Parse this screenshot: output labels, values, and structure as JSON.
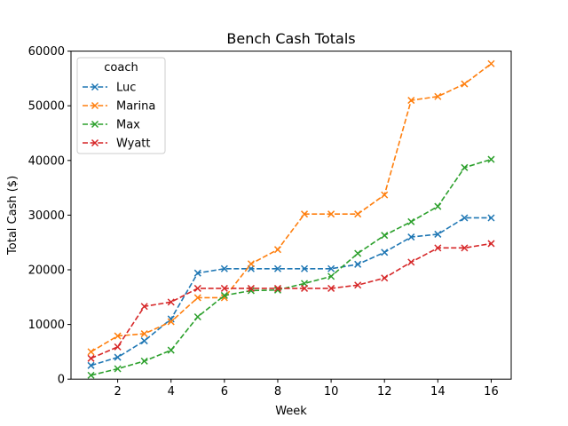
{
  "chart_data": {
    "type": "line",
    "title": "Bench Cash Totals",
    "xlabel": "Week",
    "ylabel": "Total Cash ($)",
    "xlim": [
      0.25,
      16.75
    ],
    "ylim": [
      0,
      60000
    ],
    "xticks": [
      2,
      4,
      6,
      8,
      10,
      12,
      14,
      16
    ],
    "yticks": [
      0,
      10000,
      20000,
      30000,
      40000,
      50000,
      60000
    ],
    "grid": false,
    "legend": {
      "title": "coach",
      "placement": "top-left"
    },
    "x": [
      1,
      2,
      3,
      4,
      5,
      6,
      7,
      8,
      9,
      10,
      11,
      12,
      13,
      14,
      15,
      16
    ],
    "series": [
      {
        "name": "Luc",
        "color": "#1f77b4",
        "values": [
          2500,
          4000,
          7000,
          11000,
          19400,
          20200,
          20200,
          20200,
          20200,
          20200,
          21000,
          23200,
          26000,
          26500,
          29500,
          29500
        ]
      },
      {
        "name": "Marina",
        "color": "#ff7f0e",
        "values": [
          5000,
          7900,
          8300,
          10500,
          14900,
          14900,
          21100,
          23700,
          30200,
          30200,
          30200,
          33700,
          51000,
          51700,
          54000,
          57700
        ]
      },
      {
        "name": "Max",
        "color": "#2ca02c",
        "values": [
          700,
          1900,
          3300,
          5300,
          11400,
          15300,
          16200,
          16300,
          17500,
          18800,
          23000,
          26300,
          28800,
          31600,
          38700,
          40200
        ]
      },
      {
        "name": "Wyatt",
        "color": "#d62728",
        "values": [
          3800,
          5900,
          13300,
          14100,
          16600,
          16600,
          16600,
          16600,
          16600,
          16600,
          17200,
          18500,
          21400,
          24000,
          24000,
          24800
        ]
      }
    ]
  }
}
